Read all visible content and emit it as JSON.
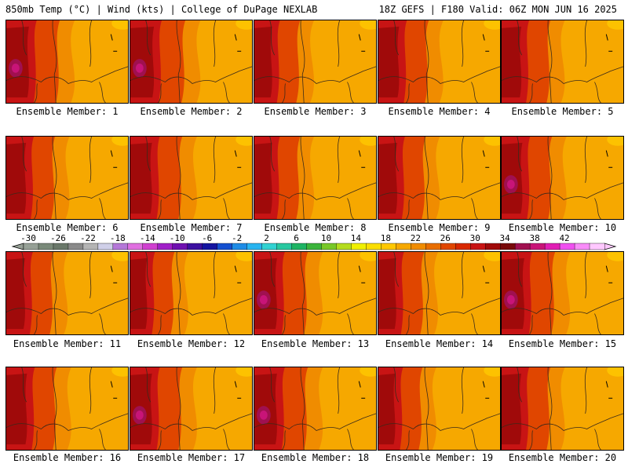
{
  "header": {
    "left": "850mb Temp (°C) | Wind (kts) | College of DuPage NEXLAB",
    "right": "18Z GEFS | F180 Valid: 06Z MON JUN 16 2025"
  },
  "panels": [
    {
      "label": "Ensemble Member: 1",
      "heat": 0.85,
      "violet": true
    },
    {
      "label": "Ensemble Member: 2",
      "heat": 0.9,
      "violet": true
    },
    {
      "label": "Ensemble Member: 3",
      "heat": 0.6,
      "violet": false
    },
    {
      "label": "Ensemble Member: 4",
      "heat": 0.75,
      "violet": false
    },
    {
      "label": "Ensemble Member: 5",
      "heat": 0.7,
      "violet": false
    },
    {
      "label": "Ensemble Member: 6",
      "heat": 0.7,
      "violet": false
    },
    {
      "label": "Ensemble Member: 7",
      "heat": 0.8,
      "violet": false
    },
    {
      "label": "Ensemble Member: 8",
      "heat": 0.6,
      "violet": false
    },
    {
      "label": "Ensemble Member: 9",
      "heat": 0.65,
      "violet": false
    },
    {
      "label": "Ensemble Member: 10",
      "heat": 0.75,
      "violet": true
    },
    {
      "label": "Ensemble Member: 11",
      "heat": 0.65,
      "violet": false
    },
    {
      "label": "Ensemble Member: 12",
      "heat": 0.55,
      "violet": false
    },
    {
      "label": "Ensemble Member: 13",
      "heat": 0.85,
      "violet": true
    },
    {
      "label": "Ensemble Member: 14",
      "heat": 0.6,
      "violet": false
    },
    {
      "label": "Ensemble Member: 15",
      "heat": 0.85,
      "violet": true
    },
    {
      "label": "Ensemble Member: 16",
      "heat": 0.75,
      "violet": false
    },
    {
      "label": "Ensemble Member: 17",
      "heat": 0.8,
      "violet": true
    },
    {
      "label": "Ensemble Member: 18",
      "heat": 0.85,
      "violet": true
    },
    {
      "label": "Ensemble Member: 19",
      "heat": 0.55,
      "violet": false
    },
    {
      "label": "Ensemble Member: 20",
      "heat": 0.7,
      "violet": false
    }
  ],
  "colorbar": {
    "tick_labels": [
      "-30",
      "-26",
      "-22",
      "-18",
      "-14",
      "-10",
      "-6",
      "-2",
      "2",
      "6",
      "10",
      "14",
      "18",
      "22",
      "26",
      "30",
      "34",
      "38",
      "42"
    ],
    "colors": [
      "#96a096",
      "#7a8a7a",
      "#6a786a",
      "#8a8a8a",
      "#b4b4b4",
      "#cfcfe8",
      "#b478d8",
      "#e070e0",
      "#d040d0",
      "#a020c8",
      "#7010b0",
      "#3c10a0",
      "#1414a0",
      "#1450d0",
      "#1e8ce6",
      "#28b4f0",
      "#32d2d2",
      "#28c8a0",
      "#1eb464",
      "#3cb43c",
      "#78c828",
      "#b4dc1e",
      "#f0f000",
      "#fade00",
      "#ffc800",
      "#f6a800",
      "#f08c00",
      "#e86e00",
      "#e04600",
      "#d82800",
      "#c81414",
      "#a00a0a",
      "#780a0a",
      "#a01050",
      "#c81478",
      "#e01eb4",
      "#f050f0",
      "#f88cf8",
      "#ffc8ff"
    ]
  }
}
